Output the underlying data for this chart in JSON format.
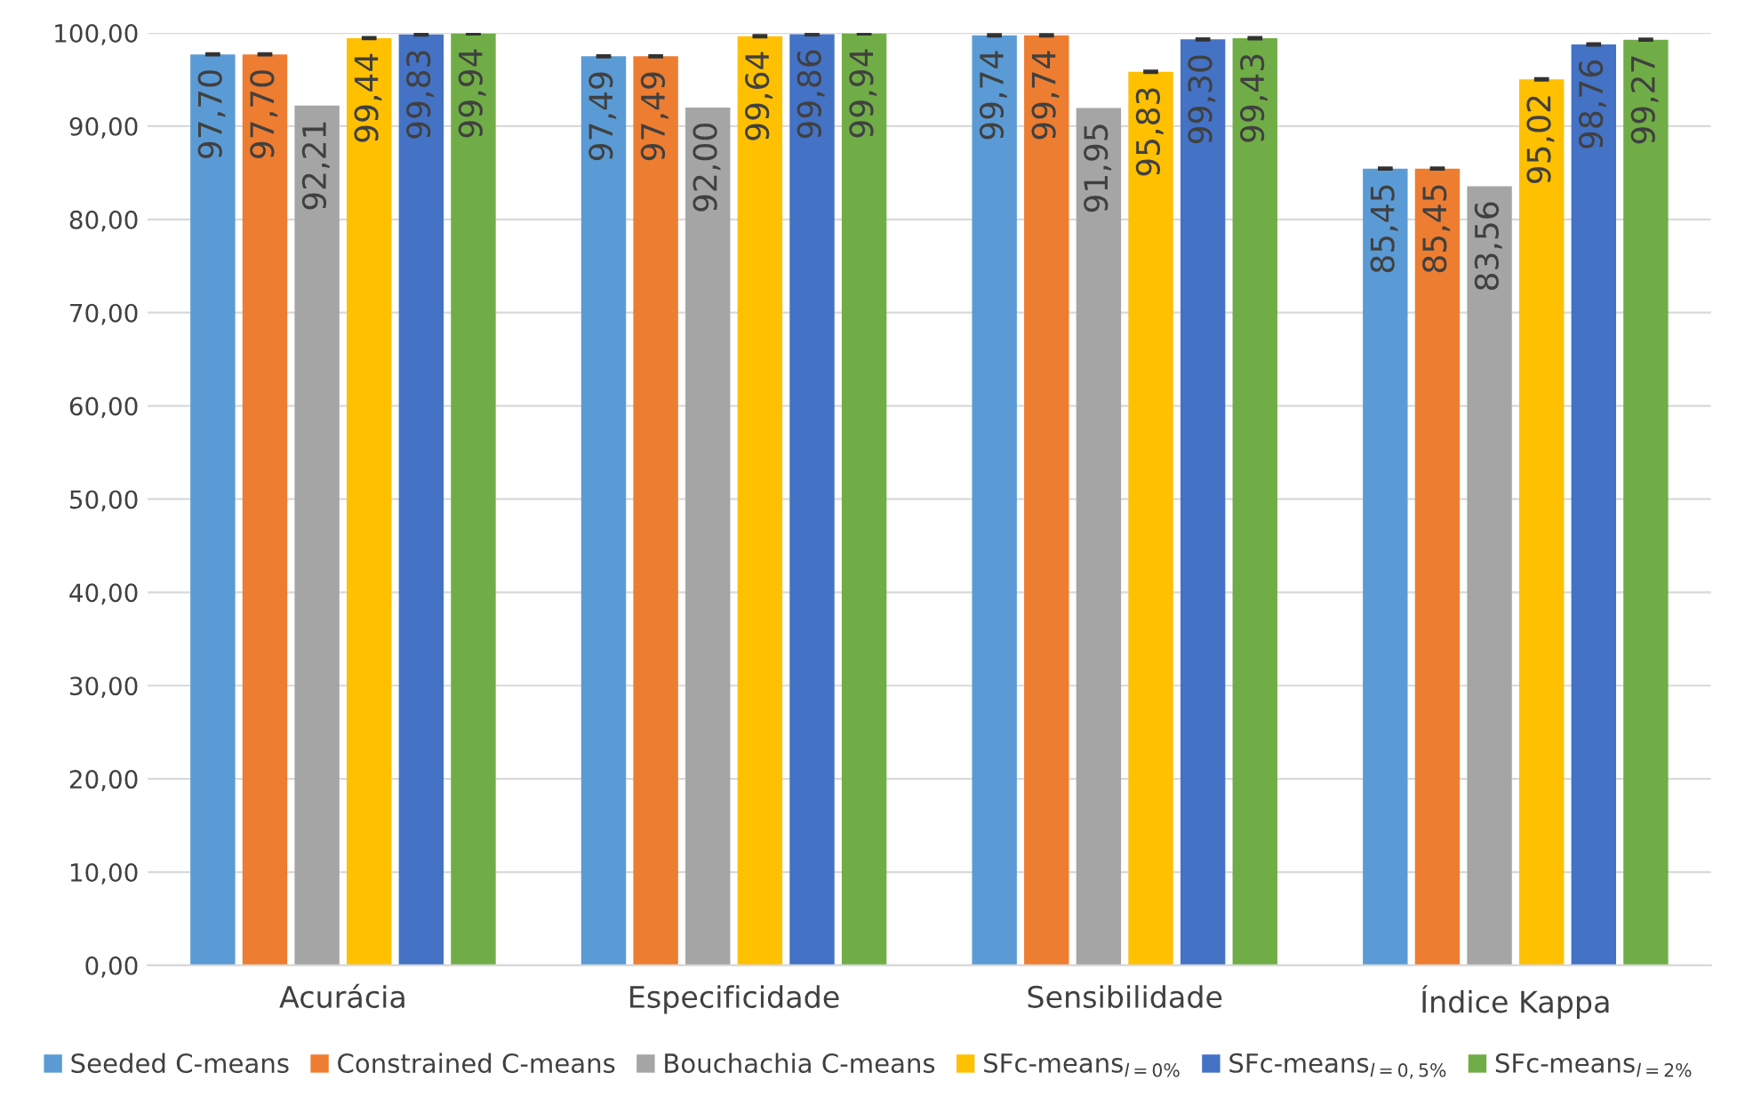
{
  "chart_data": {
    "type": "bar",
    "categories": [
      "Acurácia",
      "Especificidade",
      "Sensibilidade",
      "Índice Kappa"
    ],
    "series": [
      {
        "name": "Seeded C-means",
        "color": "#5b9bd5",
        "values": [
          97.7,
          97.49,
          99.74,
          85.45
        ],
        "value_labels": [
          "97,70",
          "97,49",
          "99,74",
          "85,45"
        ],
        "errors": [
          0.1,
          0.1,
          0.1,
          0.1
        ]
      },
      {
        "name": "Constrained C-means",
        "color": "#ed7d31",
        "values": [
          97.7,
          97.49,
          99.74,
          85.45
        ],
        "value_labels": [
          "97,70",
          "97,49",
          "99,74",
          "85,45"
        ],
        "errors": [
          0.1,
          0.1,
          0.1,
          0.1
        ]
      },
      {
        "name": "Bouchachia C-means",
        "color": "#a5a5a5",
        "values": [
          92.21,
          92.0,
          91.95,
          83.56
        ],
        "value_labels": [
          "92,21",
          "92,00",
          "91,95",
          "83,56"
        ]
      },
      {
        "name": "SFc-means$_{l=0%}$",
        "color": "#ffc000",
        "values": [
          99.44,
          99.64,
          95.83,
          95.02
        ],
        "value_labels": [
          "99,44",
          "99,64",
          "95,83",
          "95,02"
        ],
        "errors": [
          0.1,
          0.1,
          0.1,
          0.1
        ]
      },
      {
        "name": "SFc-means$_{l=0,5%}$",
        "color": "#4472c4",
        "values": [
          99.83,
          99.86,
          99.3,
          98.76
        ],
        "value_labels": [
          "99,83",
          "99,86",
          "99,30",
          "98,76"
        ],
        "errors": [
          0.1,
          0.1,
          0.1,
          0.1
        ]
      },
      {
        "name": "SFc-means$_{l=2%}$",
        "color": "#70ad47",
        "values": [
          99.94,
          99.94,
          99.43,
          99.27
        ],
        "value_labels": [
          "99,94",
          "99,94",
          "99,43",
          "99,27"
        ],
        "errors": [
          0.1,
          0.1,
          0.1,
          0.1
        ]
      }
    ],
    "ylim": [
      0,
      100
    ],
    "yticks": [
      {
        "value": 0,
        "label": "0,00"
      },
      {
        "value": 10,
        "label": "10,00"
      },
      {
        "value": 20,
        "label": "20,00"
      },
      {
        "value": 30,
        "label": "30,00"
      },
      {
        "value": 40,
        "label": "40,00"
      },
      {
        "value": 50,
        "label": "50,00"
      },
      {
        "value": 60,
        "label": "60,00"
      },
      {
        "value": 70,
        "label": "70,00"
      },
      {
        "value": 80,
        "label": "80,00"
      },
      {
        "value": 90,
        "label": "90,00"
      },
      {
        "value": 100,
        "label": "100,00"
      }
    ],
    "grid": "y",
    "legend": "bottom"
  }
}
